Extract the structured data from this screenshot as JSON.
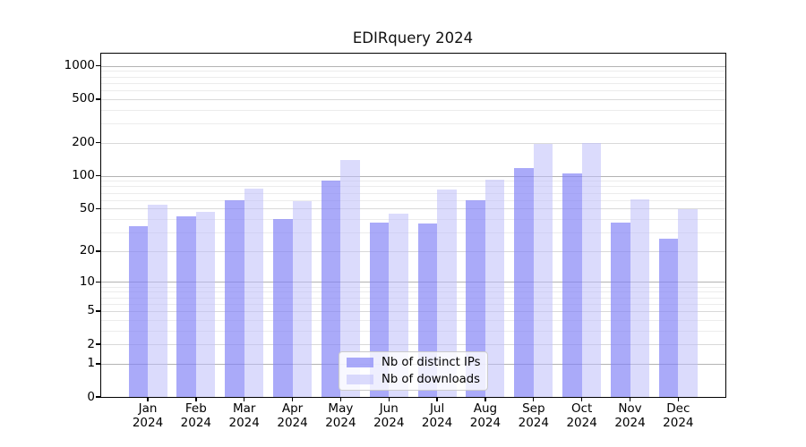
{
  "chart_data": {
    "type": "bar",
    "title": "EDIRquery 2024",
    "categories": [
      {
        "month": "Jan",
        "year": "2024"
      },
      {
        "month": "Feb",
        "year": "2024"
      },
      {
        "month": "Mar",
        "year": "2024"
      },
      {
        "month": "Apr",
        "year": "2024"
      },
      {
        "month": "May",
        "year": "2024"
      },
      {
        "month": "Jun",
        "year": "2024"
      },
      {
        "month": "Jul",
        "year": "2024"
      },
      {
        "month": "Aug",
        "year": "2024"
      },
      {
        "month": "Sep",
        "year": "2024"
      },
      {
        "month": "Oct",
        "year": "2024"
      },
      {
        "month": "Nov",
        "year": "2024"
      },
      {
        "month": "Dec",
        "year": "2024"
      }
    ],
    "series": [
      {
        "key": "distinct-ips",
        "name": "Nb of distinct IPs",
        "color": "#aaaaf8",
        "fill": "rgba(128,128,246,0.67)",
        "values": [
          34,
          42,
          60,
          40,
          90,
          37,
          36,
          60,
          118,
          105,
          37,
          26
        ]
      },
      {
        "key": "downloads",
        "name": "Nb of downloads",
        "color": "#d9d9fa",
        "fill": "rgba(190,190,250,0.55)",
        "values": [
          54,
          47,
          76,
          58,
          140,
          45,
          75,
          93,
          197,
          199,
          61,
          49
        ]
      }
    ],
    "y_axis": {
      "scale": "log1p",
      "ticks": [
        0,
        1,
        2,
        5,
        10,
        20,
        50,
        100,
        200,
        500,
        1000
      ],
      "tick_labels": [
        "0",
        "1",
        "2",
        "5",
        "10",
        "20",
        "50",
        "100",
        "200",
        "500",
        "1000"
      ],
      "range": [
        0,
        1300
      ]
    },
    "grid": {
      "on": true,
      "major_color": "#b3b3b3",
      "mid_color": "#d9d9d9",
      "minor_color": "#ececec"
    },
    "legend_position": "lower center"
  }
}
